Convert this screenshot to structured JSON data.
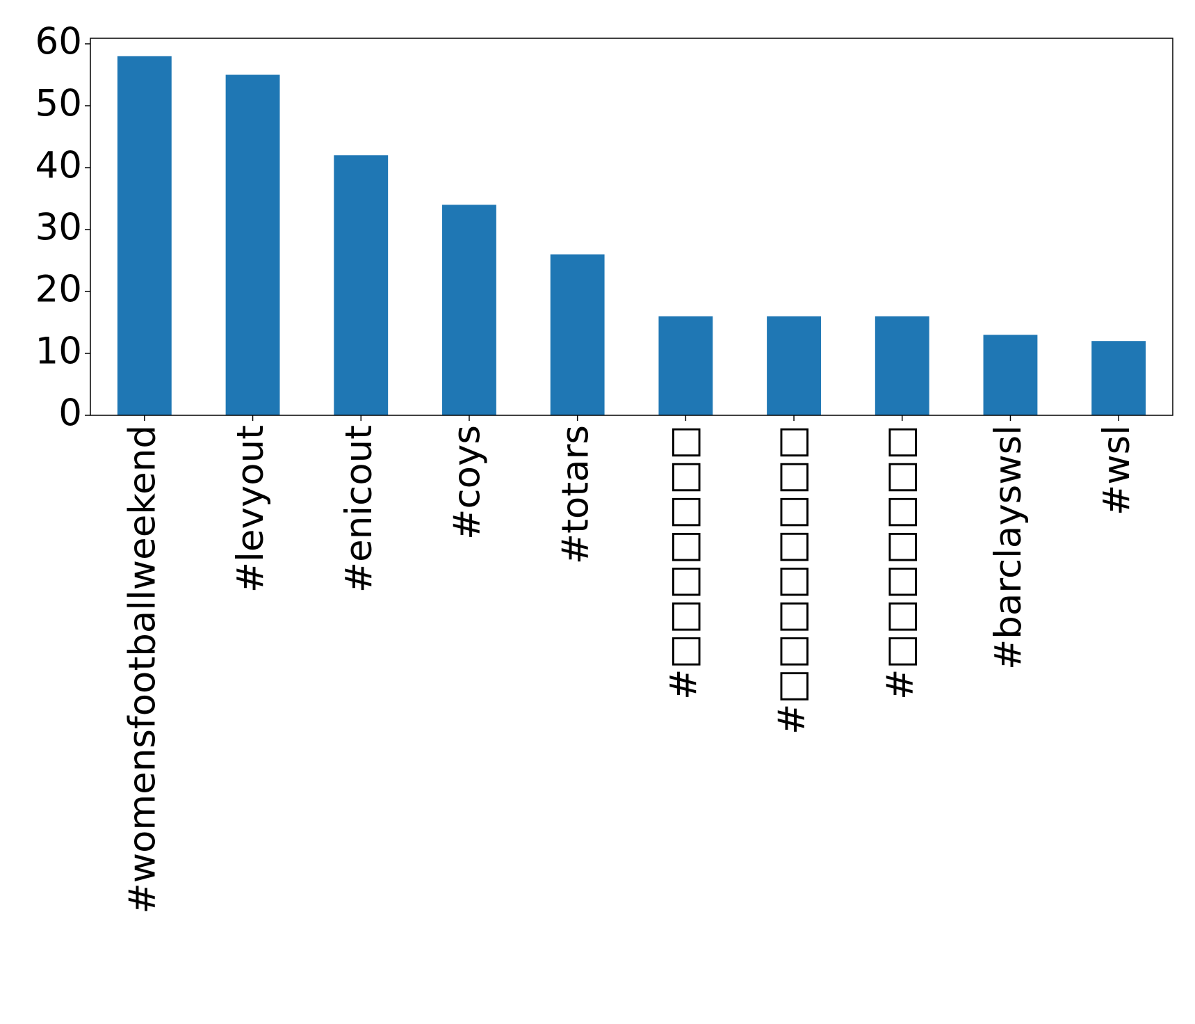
{
  "chart_data": {
    "type": "bar",
    "categories": [
      "#womensfootballweekend",
      "#levyout",
      "#enicout",
      "#coys",
      "#totars",
      "#□□□□□□□",
      "#□□□□□□□□",
      "#□□□□□□□",
      "#barclayswsl",
      "#wsl"
    ],
    "values": [
      58,
      55,
      42,
      34,
      26,
      16,
      16,
      16,
      13,
      12
    ],
    "color": "#1f77b4",
    "ylim": [
      0,
      60.9
    ],
    "yticks": [
      0,
      10,
      20,
      30,
      40,
      50,
      60
    ],
    "grid": false
  }
}
